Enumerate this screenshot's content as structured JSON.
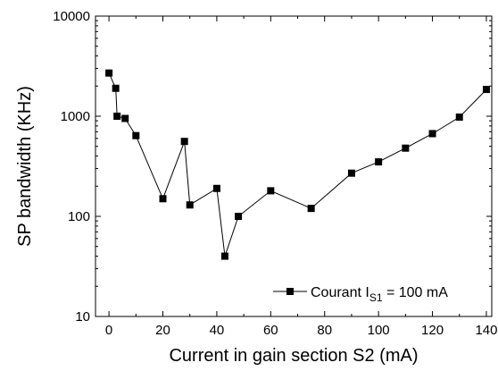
{
  "chart_data": {
    "type": "line",
    "title": "",
    "xlabel": "Current in gain section S2 (mA)",
    "ylabel": "SP bandwidth (KHz)",
    "xlim": [
      -5,
      142
    ],
    "ylim": [
      10,
      10000
    ],
    "y_scale": "log",
    "x_ticks": [
      "0",
      "20",
      "40",
      "60",
      "80",
      "100",
      "120",
      "140"
    ],
    "y_ticks": [
      "10",
      "100",
      "1000",
      "10000"
    ],
    "grid": false,
    "legend_position": "bottom-right",
    "series": [
      {
        "legend": {
          "prefix": "Courant I",
          "subscript": "S1",
          "suffix": " = 100 mA"
        },
        "color": "#000000",
        "marker": "square",
        "x": [
          0,
          2.5,
          3,
          6,
          10,
          20,
          28,
          30,
          40,
          43,
          48,
          60,
          75,
          90,
          100,
          110,
          120,
          130,
          140
        ],
        "y": [
          2700,
          1900,
          1000,
          950,
          640,
          150,
          560,
          130,
          190,
          40,
          100,
          180,
          120,
          270,
          350,
          480,
          670,
          980,
          1850
        ]
      }
    ]
  }
}
